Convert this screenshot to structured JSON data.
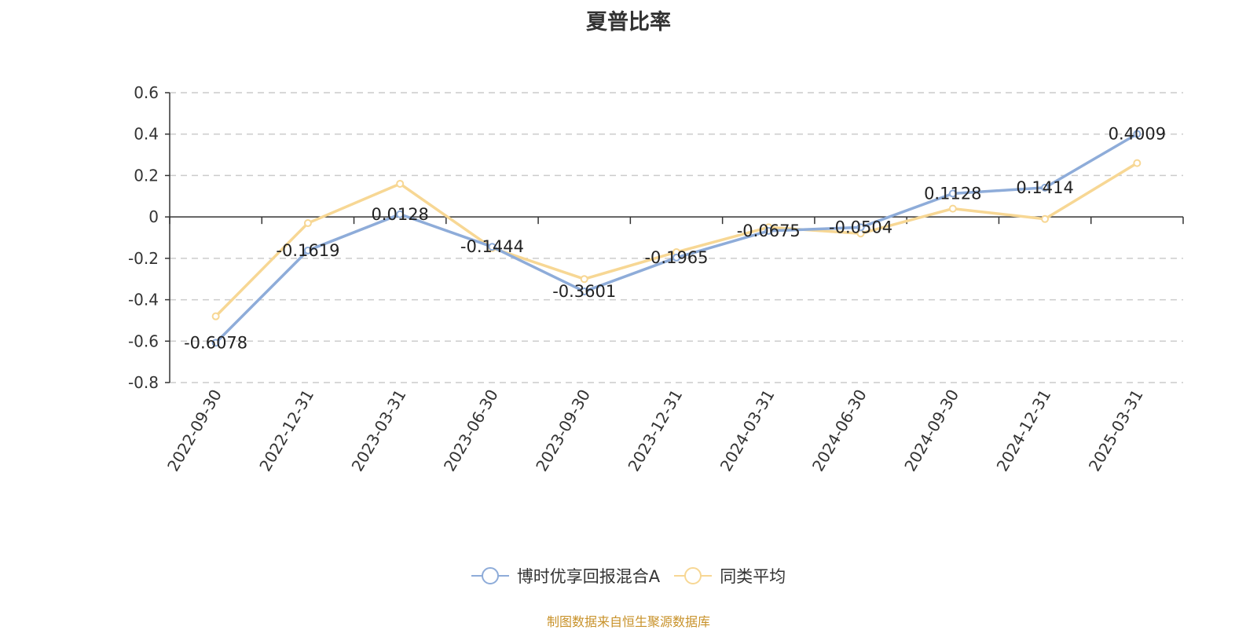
{
  "chart_data": {
    "type": "line",
    "title": "夏普比率",
    "categories": [
      "2022-09-30",
      "2022-12-31",
      "2023-03-31",
      "2023-06-30",
      "2023-09-30",
      "2023-12-31",
      "2024-03-31",
      "2024-06-30",
      "2024-09-30",
      "2024-12-31",
      "2025-03-31"
    ],
    "series": [
      {
        "name": "博时优享回报混合A",
        "color": "#8eacd9",
        "values": [
          -0.6078,
          -0.1619,
          0.0128,
          -0.1444,
          -0.3601,
          -0.1965,
          -0.0675,
          -0.0504,
          0.1128,
          0.1414,
          0.4009
        ],
        "labels": [
          "-0.6078",
          "-0.1619",
          "0.0128",
          "-0.1444",
          "-0.3601",
          "-0.1965",
          "-0.0675",
          "-0.0504",
          "0.1128",
          "0.1414",
          "0.4009"
        ]
      },
      {
        "name": "同类平均",
        "color": "#f7d794",
        "values": [
          -0.48,
          -0.03,
          0.16,
          -0.15,
          -0.3,
          -0.17,
          -0.05,
          -0.08,
          0.04,
          -0.01,
          0.26
        ]
      }
    ],
    "yticks": [
      "0.6",
      "0.4",
      "0.2",
      "0",
      "-0.2",
      "-0.4",
      "-0.6",
      "-0.8"
    ],
    "ylim": [
      -0.8,
      0.6
    ],
    "grid": true,
    "legend_position": "bottom"
  },
  "source": "制图数据来自恒生聚源数据库"
}
